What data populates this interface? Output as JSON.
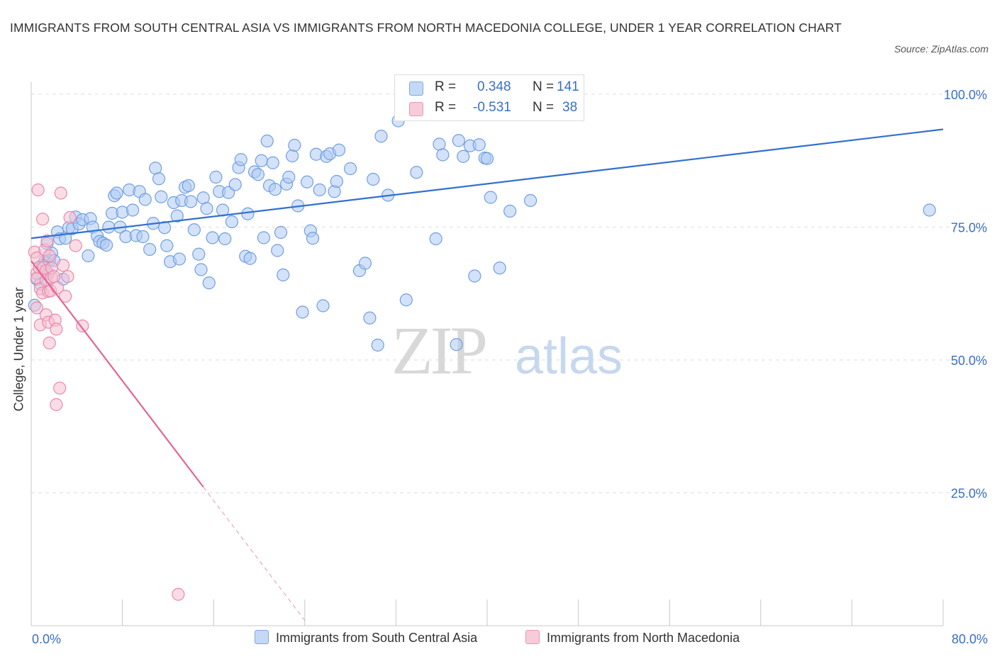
{
  "title": "IMMIGRANTS FROM SOUTH CENTRAL ASIA VS IMMIGRANTS FROM NORTH MACEDONIA COLLEGE, UNDER 1 YEAR CORRELATION CHART",
  "source": "Source: ZipAtlas.com",
  "watermark": {
    "zip": "ZIP",
    "atlas": "atlas"
  },
  "colors": {
    "blue_fill": "#aecbf2",
    "blue_stroke": "#6f9ee0",
    "blue_line": "#3170d0",
    "pink_fill": "#f5bfd0",
    "pink_stroke": "#e889ab",
    "pink_line": "#e26596",
    "tick_label": "#3a6fc4",
    "grid": "#dedede"
  },
  "legend_top": {
    "rows": [
      {
        "r_label": "R =",
        "r_value": "0.348",
        "n_label": "N =",
        "n_value": "141"
      },
      {
        "r_label": "R =",
        "r_value": "-0.531",
        "n_label": "N =",
        "n_value": "38"
      }
    ]
  },
  "legend_bottom": [
    "Immigrants from South Central Asia",
    "Immigrants from North Macedonia"
  ],
  "chart_data": {
    "type": "scatter",
    "title": "IMMIGRANTS FROM SOUTH CENTRAL ASIA VS IMMIGRANTS FROM NORTH MACEDONIA COLLEGE, UNDER 1 YEAR CORRELATION CHART",
    "xlabel": "",
    "ylabel": "College, Under 1 year",
    "xlim": [
      0,
      80
    ],
    "ylim": [
      0,
      100
    ],
    "x_ticks": [
      "0.0%",
      "80.0%"
    ],
    "y_ticks": [
      "100.0%",
      "75.0%",
      "50.0%",
      "25.0%"
    ],
    "grid": true,
    "legend_placement": "top-center and bottom",
    "series": [
      {
        "name": "Immigrants from South Central Asia",
        "R": 0.348,
        "N": 141,
        "trend": {
          "x": [
            0,
            80
          ],
          "y": [
            72.9,
            93.4
          ]
        },
        "points": [
          [
            0.3,
            60.3
          ],
          [
            0.5,
            65.2
          ],
          [
            0.8,
            64.3
          ],
          [
            1.0,
            67.9
          ],
          [
            1.2,
            68.6
          ],
          [
            1.4,
            71.9
          ],
          [
            1.5,
            66.3
          ],
          [
            1.6,
            68.7
          ],
          [
            1.8,
            70.1
          ],
          [
            2.0,
            68.7
          ],
          [
            2.3,
            74.1
          ],
          [
            2.5,
            72.8
          ],
          [
            2.8,
            65.2
          ],
          [
            3.0,
            72.9
          ],
          [
            3.3,
            74.9
          ],
          [
            3.6,
            74.7
          ],
          [
            3.9,
            76.9
          ],
          [
            4.2,
            75.6
          ],
          [
            4.5,
            76.4
          ],
          [
            5.0,
            69.6
          ],
          [
            5.2,
            76.6
          ],
          [
            5.4,
            75.0
          ],
          [
            5.8,
            73.3
          ],
          [
            6.0,
            72.3
          ],
          [
            6.3,
            72.0
          ],
          [
            6.6,
            71.6
          ],
          [
            6.8,
            75.0
          ],
          [
            7.1,
            77.6
          ],
          [
            7.3,
            80.9
          ],
          [
            7.5,
            81.4
          ],
          [
            7.8,
            75.0
          ],
          [
            8.0,
            77.8
          ],
          [
            8.3,
            73.2
          ],
          [
            8.6,
            82.0
          ],
          [
            8.9,
            78.2
          ],
          [
            9.2,
            73.4
          ],
          [
            9.5,
            81.7
          ],
          [
            9.8,
            73.2
          ],
          [
            10.0,
            80.2
          ],
          [
            10.4,
            70.8
          ],
          [
            10.7,
            75.7
          ],
          [
            10.9,
            86.1
          ],
          [
            11.2,
            84.1
          ],
          [
            11.4,
            80.7
          ],
          [
            11.7,
            74.9
          ],
          [
            11.9,
            71.5
          ],
          [
            12.2,
            68.5
          ],
          [
            12.5,
            79.6
          ],
          [
            12.8,
            77.1
          ],
          [
            13.0,
            69.0
          ],
          [
            13.2,
            80.0
          ],
          [
            13.5,
            82.5
          ],
          [
            13.8,
            82.8
          ],
          [
            14.0,
            79.8
          ],
          [
            14.3,
            74.5
          ],
          [
            14.7,
            69.9
          ],
          [
            14.9,
            67.0
          ],
          [
            15.1,
            80.5
          ],
          [
            15.4,
            78.5
          ],
          [
            15.6,
            64.5
          ],
          [
            15.9,
            73.0
          ],
          [
            16.2,
            84.4
          ],
          [
            16.5,
            81.7
          ],
          [
            16.8,
            78.2
          ],
          [
            17.0,
            72.8
          ],
          [
            17.3,
            81.5
          ],
          [
            17.6,
            76.0
          ],
          [
            17.9,
            83.0
          ],
          [
            18.2,
            86.2
          ],
          [
            18.4,
            87.7
          ],
          [
            18.8,
            69.5
          ],
          [
            19.0,
            77.5
          ],
          [
            19.2,
            69.1
          ],
          [
            19.6,
            85.4
          ],
          [
            19.9,
            84.9
          ],
          [
            20.2,
            87.5
          ],
          [
            20.4,
            73.0
          ],
          [
            20.7,
            91.2
          ],
          [
            20.9,
            82.8
          ],
          [
            21.2,
            87.1
          ],
          [
            21.4,
            82.1
          ],
          [
            21.6,
            70.6
          ],
          [
            21.9,
            74.0
          ],
          [
            22.1,
            66.0
          ],
          [
            22.4,
            83.1
          ],
          [
            22.6,
            84.4
          ],
          [
            22.9,
            88.4
          ],
          [
            23.1,
            90.4
          ],
          [
            23.4,
            79.0
          ],
          [
            23.8,
            59.0
          ],
          [
            24.2,
            83.5
          ],
          [
            24.5,
            74.3
          ],
          [
            24.7,
            72.9
          ],
          [
            25.0,
            88.7
          ],
          [
            25.3,
            82.0
          ],
          [
            25.6,
            60.2
          ],
          [
            25.9,
            88.3
          ],
          [
            26.2,
            88.8
          ],
          [
            26.6,
            81.7
          ],
          [
            26.8,
            83.6
          ],
          [
            27.0,
            89.5
          ],
          [
            28.0,
            86.0
          ],
          [
            28.8,
            66.8
          ],
          [
            29.3,
            68.2
          ],
          [
            29.7,
            57.9
          ],
          [
            30.0,
            84.0
          ],
          [
            30.4,
            52.8
          ],
          [
            30.7,
            92.1
          ],
          [
            31.3,
            81.0
          ],
          [
            32.2,
            95.0
          ],
          [
            32.9,
            61.3
          ],
          [
            33.8,
            85.3
          ],
          [
            35.5,
            72.8
          ],
          [
            35.8,
            90.6
          ],
          [
            36.1,
            88.6
          ],
          [
            37.3,
            52.9
          ],
          [
            37.5,
            91.3
          ],
          [
            37.9,
            88.3
          ],
          [
            38.5,
            90.3
          ],
          [
            38.9,
            65.8
          ],
          [
            39.3,
            90.5
          ],
          [
            39.8,
            88.0
          ],
          [
            40.0,
            87.9
          ],
          [
            40.3,
            80.6
          ],
          [
            41.1,
            67.3
          ],
          [
            42.0,
            78.0
          ],
          [
            43.8,
            80.0
          ],
          [
            78.8,
            78.2
          ]
        ]
      },
      {
        "name": "Immigrants from North Macedonia",
        "R": -0.531,
        "N": 38,
        "trend": {
          "x": [
            0,
            15.1
          ],
          "y": [
            68.6,
            26.1
          ]
        },
        "trend_dashed": {
          "x": [
            15.1,
            24.0
          ],
          "y": [
            26.1,
            1.0
          ]
        },
        "points": [
          [
            0.3,
            70.3
          ],
          [
            0.5,
            69.2
          ],
          [
            0.5,
            66.3
          ],
          [
            0.5,
            65.4
          ],
          [
            0.5,
            59.8
          ],
          [
            0.6,
            82.0
          ],
          [
            0.7,
            67.4
          ],
          [
            0.8,
            63.4
          ],
          [
            0.8,
            56.6
          ],
          [
            1.0,
            62.6
          ],
          [
            1.0,
            76.5
          ],
          [
            1.1,
            67.4
          ],
          [
            1.2,
            70.7
          ],
          [
            1.3,
            66.8
          ],
          [
            1.3,
            65.0
          ],
          [
            1.3,
            58.5
          ],
          [
            1.5,
            62.9
          ],
          [
            1.5,
            57.1
          ],
          [
            1.6,
            53.2
          ],
          [
            1.6,
            69.6
          ],
          [
            1.7,
            63.0
          ],
          [
            1.8,
            65.5
          ],
          [
            1.8,
            67.3
          ],
          [
            2.0,
            65.7
          ],
          [
            2.1,
            57.5
          ],
          [
            2.2,
            41.6
          ],
          [
            2.2,
            55.8
          ],
          [
            2.3,
            63.6
          ],
          [
            2.5,
            44.7
          ],
          [
            2.6,
            81.4
          ],
          [
            2.8,
            67.8
          ],
          [
            3.2,
            65.7
          ],
          [
            3.4,
            76.8
          ],
          [
            3.9,
            71.5
          ],
          [
            4.5,
            56.4
          ],
          [
            12.9,
            5.9
          ],
          [
            3.0,
            62.0
          ],
          [
            1.4,
            72.4
          ]
        ]
      }
    ]
  }
}
